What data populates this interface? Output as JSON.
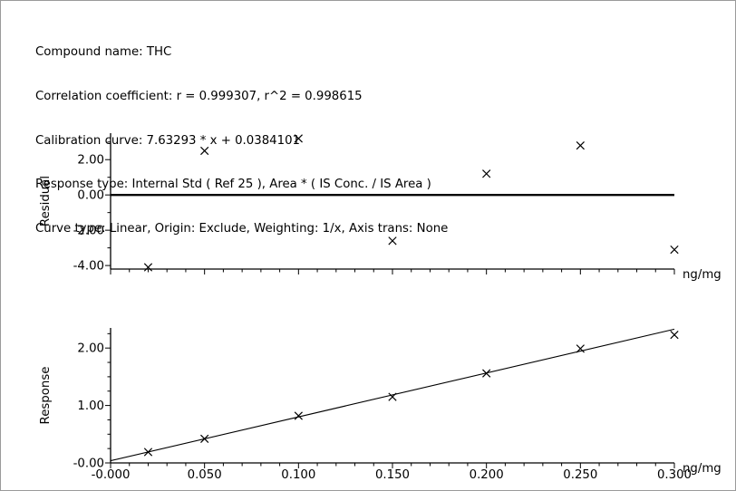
{
  "header": {
    "compound": "Compound name: THC",
    "correlation": "Correlation coefficient: r = 0.999307, r^2 = 0.998615",
    "calibration": "Calibration curve: 7.63293 * x + 0.0384101",
    "response_type": "Response type: Internal Std ( Ref 25 ), Area * ( IS Conc. / IS Area )",
    "curve_type": "Curve type: Linear, Origin: Exclude, Weighting: 1/x, Axis trans: None"
  },
  "chart_data": [
    {
      "type": "scatter",
      "ylabel": "Residual",
      "xlabel": "ng/mg",
      "xlim": [
        0.0,
        0.3
      ],
      "ylim": [
        -4.2,
        3.5
      ],
      "yticks": [
        "2.00",
        "0.00",
        "-2.00",
        "-4.00"
      ],
      "x": [
        0.02,
        0.05,
        0.1,
        0.15,
        0.2,
        0.25,
        0.3
      ],
      "y": [
        -4.1,
        2.5,
        3.2,
        -2.6,
        1.2,
        2.8,
        -3.1
      ],
      "reference_line_y": 0.0,
      "marker": "x"
    },
    {
      "type": "scatter",
      "ylabel": "Response",
      "xlabel": "ng/mg",
      "xlim": [
        0.0,
        0.3
      ],
      "ylim": [
        0.0,
        2.35
      ],
      "yticks": [
        "2.00",
        "1.00",
        "-0.00"
      ],
      "xticks": [
        "-0.000",
        "0.050",
        "0.100",
        "0.150",
        "0.200",
        "0.250",
        "0.300"
      ],
      "x": [
        0.02,
        0.05,
        0.1,
        0.15,
        0.2,
        0.25,
        0.3
      ],
      "y": [
        0.19,
        0.42,
        0.82,
        1.15,
        1.56,
        1.99,
        2.23
      ],
      "fit_line": {
        "slope": 7.63293,
        "intercept": 0.0384101
      },
      "marker": "x"
    }
  ]
}
